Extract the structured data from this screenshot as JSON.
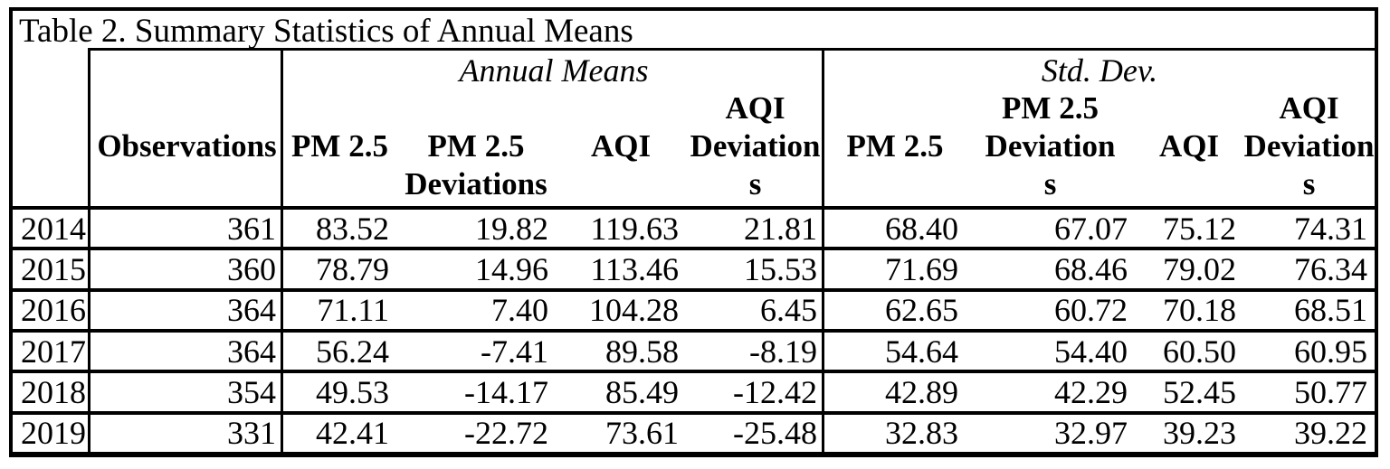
{
  "title": "Table 2. Summary Statistics of Annual Means",
  "colors": {
    "text": "#000000",
    "background": "#ffffff",
    "border": "#000000"
  },
  "header": {
    "observations": {
      "label": "Observations",
      "lines": [
        "",
        "Observations",
        ""
      ]
    },
    "annual_means": {
      "label": "Annual Means",
      "columns": [
        {
          "label": "PM 2.5",
          "lines": [
            "",
            "PM 2.5",
            ""
          ]
        },
        {
          "label": "PM 2.5 Deviations",
          "lines": [
            "",
            "PM 2.5",
            "Deviations"
          ]
        },
        {
          "label": "AQI",
          "lines": [
            "",
            "AQI",
            ""
          ]
        },
        {
          "label": "AQI Deviations",
          "lines": [
            "AQI",
            "Deviation",
            "s"
          ]
        }
      ]
    },
    "std_dev": {
      "label": "Std. Dev.",
      "columns": [
        {
          "label": "PM 2.5",
          "lines": [
            "",
            "PM 2.5",
            ""
          ]
        },
        {
          "label": "PM 2.5 Deviations",
          "lines": [
            "PM 2.5",
            "Deviation",
            "s"
          ]
        },
        {
          "label": "AQI",
          "lines": [
            "",
            "AQI",
            ""
          ]
        },
        {
          "label": "AQI Deviations",
          "lines": [
            "AQI",
            "Deviation",
            "s"
          ]
        }
      ]
    }
  },
  "rows": [
    {
      "year": "2014",
      "observations": "361",
      "annual_means": [
        "83.52",
        "19.82",
        "119.63",
        "21.81"
      ],
      "std_dev": [
        "68.40",
        "67.07",
        "75.12",
        "74.31"
      ]
    },
    {
      "year": "2015",
      "observations": "360",
      "annual_means": [
        "78.79",
        "14.96",
        "113.46",
        "15.53"
      ],
      "std_dev": [
        "71.69",
        "68.46",
        "79.02",
        "76.34"
      ]
    },
    {
      "year": "2016",
      "observations": "364",
      "annual_means": [
        "71.11",
        "7.40",
        "104.28",
        "6.45"
      ],
      "std_dev": [
        "62.65",
        "60.72",
        "70.18",
        "68.51"
      ]
    },
    {
      "year": "2017",
      "observations": "364",
      "annual_means": [
        "56.24",
        "-7.41",
        "89.58",
        "-8.19"
      ],
      "std_dev": [
        "54.64",
        "54.40",
        "60.50",
        "60.95"
      ]
    },
    {
      "year": "2018",
      "observations": "354",
      "annual_means": [
        "49.53",
        "-14.17",
        "85.49",
        "-12.42"
      ],
      "std_dev": [
        "42.89",
        "42.29",
        "52.45",
        "50.77"
      ]
    },
    {
      "year": "2019",
      "observations": "331",
      "annual_means": [
        "42.41",
        "-22.72",
        "73.61",
        "-25.48"
      ],
      "std_dev": [
        "32.83",
        "32.97",
        "39.23",
        "39.22"
      ]
    }
  ]
}
